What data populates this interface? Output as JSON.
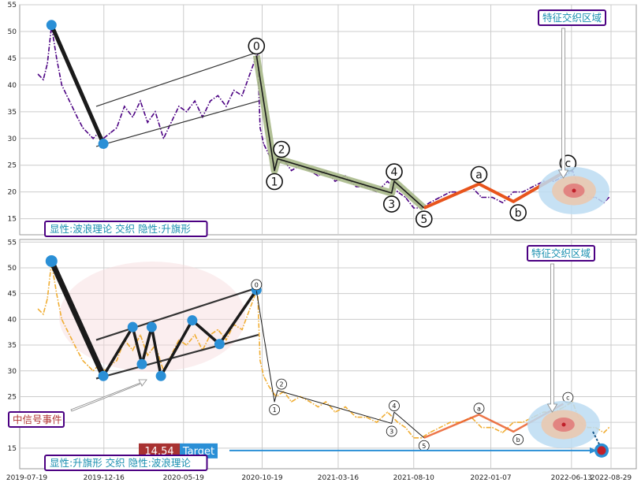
{
  "chart_data": [
    {
      "type": "line",
      "panel": "top",
      "ylim": [
        12,
        55
      ],
      "yticks": [
        15,
        20,
        25,
        30,
        35,
        40,
        45,
        50,
        55
      ],
      "grid": true,
      "series": [
        {
          "style": "dash-dot",
          "color": "#4b0082",
          "x": [
            "2019-08-10",
            "2019-08-20",
            "2019-08-28",
            "2019-09-05",
            "2019-09-15",
            "2019-09-25",
            "2019-10-05",
            "2019-10-15",
            "2019-10-25",
            "2019-11-05",
            "2019-11-15",
            "2019-11-25",
            "2019-12-05",
            "2019-12-15",
            "2019-12-28",
            "2020-01-10",
            "2020-01-25",
            "2020-02-10",
            "2020-02-25",
            "2020-03-10",
            "2020-03-25",
            "2020-04-10",
            "2020-04-25",
            "2020-05-10",
            "2020-05-25",
            "2020-06-10",
            "2020-06-25",
            "2020-07-10",
            "2020-07-25",
            "2020-08-10",
            "2020-08-25",
            "2020-09-10",
            "2020-09-25",
            "2020-10-10",
            "2020-10-15",
            "2020-10-22",
            "2020-11-01",
            "2020-11-15",
            "2020-11-30",
            "2020-12-15",
            "2021-01-01",
            "2021-01-20",
            "2021-02-05",
            "2021-02-20",
            "2021-03-10",
            "2021-03-30",
            "2021-04-20",
            "2021-05-10",
            "2021-05-30",
            "2021-06-20",
            "2021-07-10",
            "2021-07-25",
            "2021-08-10",
            "2021-08-25",
            "2021-09-10",
            "2021-09-30",
            "2021-10-20",
            "2021-11-10",
            "2021-11-30",
            "2021-12-20",
            "2022-01-10",
            "2022-01-30",
            "2022-02-20",
            "2022-03-10",
            "2022-03-30",
            "2022-04-20",
            "2022-05-10",
            "2022-05-30",
            "2022-06-15",
            "2022-06-30",
            "2022-07-15",
            "2022-07-30",
            "2022-08-15",
            "2022-08-25"
          ],
          "y": [
            42,
            41,
            44,
            51,
            45,
            40,
            38,
            36,
            34,
            32,
            31,
            30,
            31,
            30,
            31,
            32,
            36,
            34,
            37,
            33,
            35,
            30,
            33,
            36,
            35,
            37,
            34,
            37,
            38,
            36,
            39,
            38,
            42,
            46,
            32,
            29,
            27,
            25,
            26,
            24,
            25,
            24,
            23,
            24,
            22,
            23,
            21,
            21,
            20,
            22,
            20,
            19,
            17,
            17,
            18,
            19,
            20,
            20,
            21,
            19,
            19,
            18,
            20,
            20,
            21,
            22,
            22,
            23,
            24,
            20,
            19,
            19,
            18,
            19
          ]
        }
      ],
      "markers": [
        {
          "x": "2019-09-05",
          "y": 51.2
        },
        {
          "x": "2019-12-15",
          "y": 29.0
        }
      ],
      "wave_labels": [
        "0",
        "1",
        "2",
        "3",
        "4",
        "5",
        "a",
        "b",
        "c"
      ],
      "waves": [
        {
          "label": "0",
          "x": "2020-10-08",
          "y": 45.5
        },
        {
          "label": "1",
          "x": "2020-11-12",
          "y": 24.0
        },
        {
          "label": "2",
          "x": "2020-11-18",
          "y": 26.2
        },
        {
          "label": "3",
          "x": "2021-06-28",
          "y": 19.8
        },
        {
          "label": "4",
          "x": "2021-07-03",
          "y": 22.0
        },
        {
          "label": "5",
          "x": "2021-08-30",
          "y": 17.0
        },
        {
          "label": "a",
          "x": "2021-12-15",
          "y": 21.5
        },
        {
          "label": "b",
          "x": "2022-02-20",
          "y": 18.2
        },
        {
          "label": "c",
          "x": "2022-05-28",
          "y": 23.6
        }
      ],
      "legend_text": "显性:波浪理论 交织 隐性:升旗形",
      "zone_label": "特征交织区域"
    },
    {
      "type": "line",
      "panel": "bottom",
      "ylim": [
        11,
        55.5
      ],
      "yticks": [
        15,
        20,
        25,
        30,
        35,
        40,
        45,
        50,
        55
      ],
      "xticks": [
        "2019-07-19",
        "2019-12-16",
        "2020-05-19",
        "2020-10-19",
        "2021-03-16",
        "2021-08-10",
        "2022-01-07",
        "2022-06-13",
        "2022-08-29"
      ],
      "grid": true,
      "series": [
        {
          "style": "dash-dot",
          "color": "#f0ad32",
          "x": [
            "2019-08-10",
            "2019-08-20",
            "2019-08-28",
            "2019-09-05",
            "2019-09-15",
            "2019-09-25",
            "2019-10-05",
            "2019-10-15",
            "2019-10-25",
            "2019-11-05",
            "2019-11-15",
            "2019-11-25",
            "2019-12-05",
            "2019-12-15",
            "2019-12-28",
            "2020-01-10",
            "2020-01-25",
            "2020-02-10",
            "2020-02-25",
            "2020-03-10",
            "2020-03-25",
            "2020-04-10",
            "2020-04-25",
            "2020-05-10",
            "2020-05-25",
            "2020-06-10",
            "2020-06-25",
            "2020-07-10",
            "2020-07-25",
            "2020-08-10",
            "2020-08-25",
            "2020-09-10",
            "2020-09-25",
            "2020-10-10",
            "2020-10-15",
            "2020-10-22",
            "2020-11-01",
            "2020-11-15",
            "2020-11-30",
            "2020-12-15",
            "2021-01-01",
            "2021-01-20",
            "2021-02-05",
            "2021-02-20",
            "2021-03-10",
            "2021-03-30",
            "2021-04-20",
            "2021-05-10",
            "2021-05-30",
            "2021-06-20",
            "2021-07-10",
            "2021-07-25",
            "2021-08-10",
            "2021-08-25",
            "2021-09-10",
            "2021-09-30",
            "2021-10-20",
            "2021-11-10",
            "2021-11-30",
            "2021-12-20",
            "2022-01-10",
            "2022-01-30",
            "2022-02-20",
            "2022-03-10",
            "2022-03-30",
            "2022-04-20",
            "2022-05-10",
            "2022-05-30",
            "2022-06-15",
            "2022-06-30",
            "2022-07-15",
            "2022-07-30",
            "2022-08-15",
            "2022-08-25"
          ],
          "y": [
            42,
            41,
            44,
            51,
            45,
            40,
            38,
            36,
            34,
            32,
            31,
            30,
            31,
            30,
            31,
            32,
            36,
            34,
            37,
            33,
            35,
            30,
            33,
            36,
            35,
            37,
            34,
            37,
            38,
            36,
            39,
            38,
            42,
            46,
            32,
            29,
            27,
            25,
            26,
            24,
            25,
            24,
            23,
            24,
            22,
            23,
            21,
            21,
            20,
            22,
            20,
            19,
            17,
            17,
            18,
            19,
            20,
            20,
            21,
            19,
            19,
            18,
            20,
            20,
            21,
            22,
            22,
            23,
            24,
            20,
            19,
            19,
            18,
            19
          ]
        }
      ],
      "flag_points": [
        {
          "x": "2019-09-05",
          "y": 51.3
        },
        {
          "x": "2019-12-15",
          "y": 29.0
        },
        {
          "x": "2020-02-10",
          "y": 38.5
        },
        {
          "x": "2020-02-28",
          "y": 31.3
        },
        {
          "x": "2020-03-18",
          "y": 38.5
        },
        {
          "x": "2020-04-05",
          "y": 29.0
        },
        {
          "x": "2020-06-05",
          "y": 39.8
        },
        {
          "x": "2020-07-28",
          "y": 35.2
        },
        {
          "x": "2020-10-08",
          "y": 45.7
        }
      ],
      "wave_labels": [
        "0",
        "1",
        "2",
        "3",
        "4",
        "5",
        "a",
        "b",
        "c"
      ],
      "waves": [
        {
          "label": "0",
          "x": "2020-10-08",
          "y": 45.5
        },
        {
          "label": "1",
          "x": "2020-11-12",
          "y": 24.0
        },
        {
          "label": "2",
          "x": "2020-11-18",
          "y": 26.2
        },
        {
          "label": "3",
          "x": "2021-06-28",
          "y": 19.8
        },
        {
          "label": "4",
          "x": "2021-07-03",
          "y": 22.0
        },
        {
          "label": "5",
          "x": "2021-08-30",
          "y": 17.0
        },
        {
          "label": "a",
          "x": "2021-12-15",
          "y": 21.5
        },
        {
          "label": "b",
          "x": "2022-02-20",
          "y": 18.2
        },
        {
          "label": "c",
          "x": "2022-05-28",
          "y": 23.6
        }
      ],
      "target": {
        "value": "14.54",
        "label": "Target",
        "y": 14.54
      },
      "event_label": "中信号事件",
      "legend_text": "显性:升旗形 交织 隐性:波浪理论",
      "zone_label": "特征交织区域"
    }
  ],
  "colors": {
    "wave_line": "#1a1a1a",
    "wave_green": "#a9b98a",
    "abc_orange": "#e8541c",
    "marker_blue": "#2a8fd6",
    "label_border": "#4b0082",
    "label_text": "#1a8fb0",
    "zone_outer": "#bcdcf2",
    "zone_mid": "#e9c9b0",
    "zone_inner": "#e07878",
    "target_red": "#a83232",
    "target_blue": "#2a8fd6",
    "event_text": "#b03232"
  }
}
